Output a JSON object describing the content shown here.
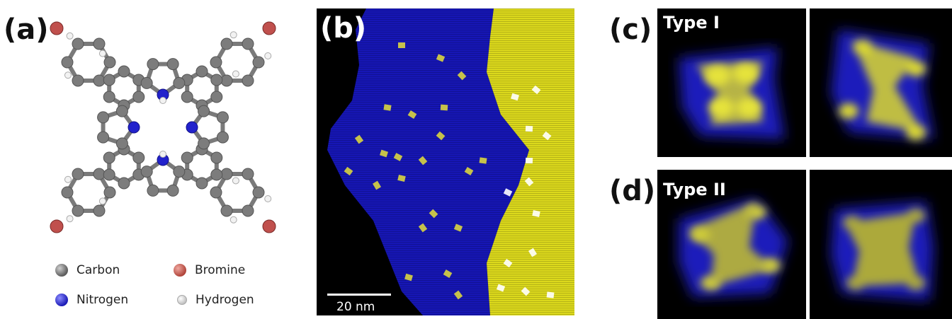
{
  "panels": {
    "a": {
      "label": "(a)",
      "legend": [
        {
          "name": "Carbon",
          "color": "#6e6e6e"
        },
        {
          "name": "Bromine",
          "color": "#c0504d"
        },
        {
          "name": "Nitrogen",
          "color": "#2222cc"
        },
        {
          "name": "Hydrogen",
          "color": "#eeeeee"
        }
      ]
    },
    "b": {
      "label": "(b)",
      "scale_bar": "20 nm"
    },
    "c": {
      "label": "(c)",
      "type_label": "Type I"
    },
    "d": {
      "label": "(d)",
      "type_label": "Type II"
    }
  },
  "colors": {
    "substrate_blue": "#1515b8",
    "terrace_yellow": "#e0de1a",
    "background_dark": "#000000"
  }
}
